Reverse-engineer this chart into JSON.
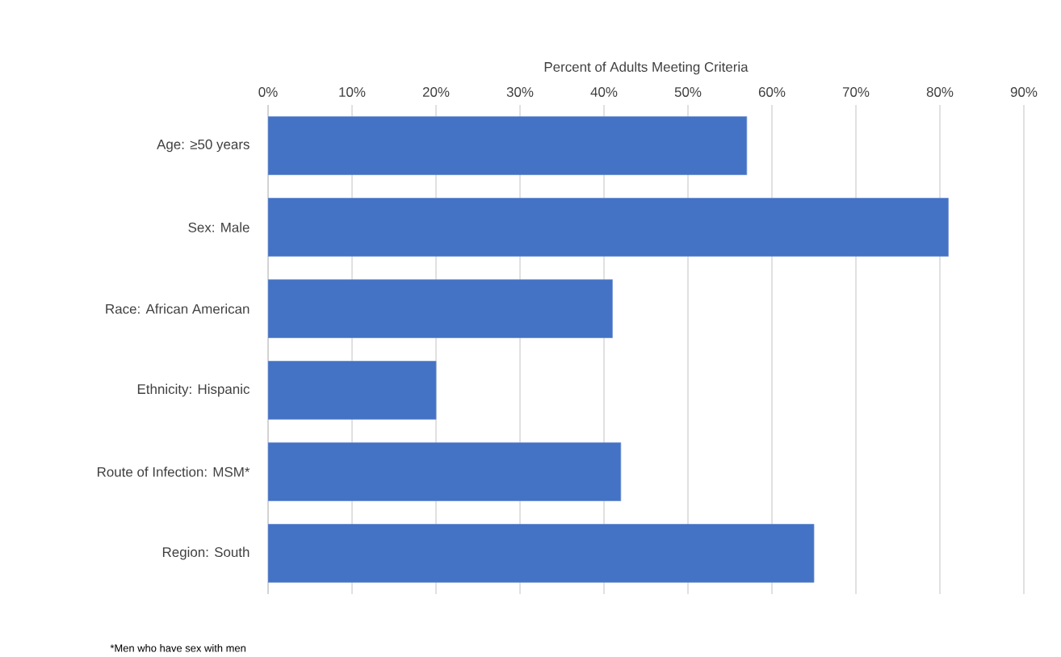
{
  "chart_data": {
    "type": "bar",
    "orientation": "horizontal",
    "xlabel": "Percent of Adults Meeting Criteria",
    "categories": [
      "Age: ≥50 years",
      "Sex: Male",
      "Race: African American",
      "Ethnicity: Hispanic",
      "Route of Infection: MSM*",
      "Region: South"
    ],
    "values": [
      57,
      81,
      41,
      20,
      42,
      65
    ],
    "color": "#4472c4",
    "xlim": [
      0,
      90
    ],
    "xticks": [
      {
        "value": 0,
        "label": "0%"
      },
      {
        "value": 10,
        "label": "10%"
      },
      {
        "value": 20,
        "label": "20%"
      },
      {
        "value": 30,
        "label": "30%"
      },
      {
        "value": 40,
        "label": "40%"
      },
      {
        "value": 50,
        "label": "50%"
      },
      {
        "value": 60,
        "label": "60%"
      },
      {
        "value": 70,
        "label": "70%"
      },
      {
        "value": 80,
        "label": "80%"
      },
      {
        "value": 90,
        "label": "90%"
      }
    ],
    "grid": "x",
    "annotations": [
      "*Men who have sex with men"
    ]
  }
}
